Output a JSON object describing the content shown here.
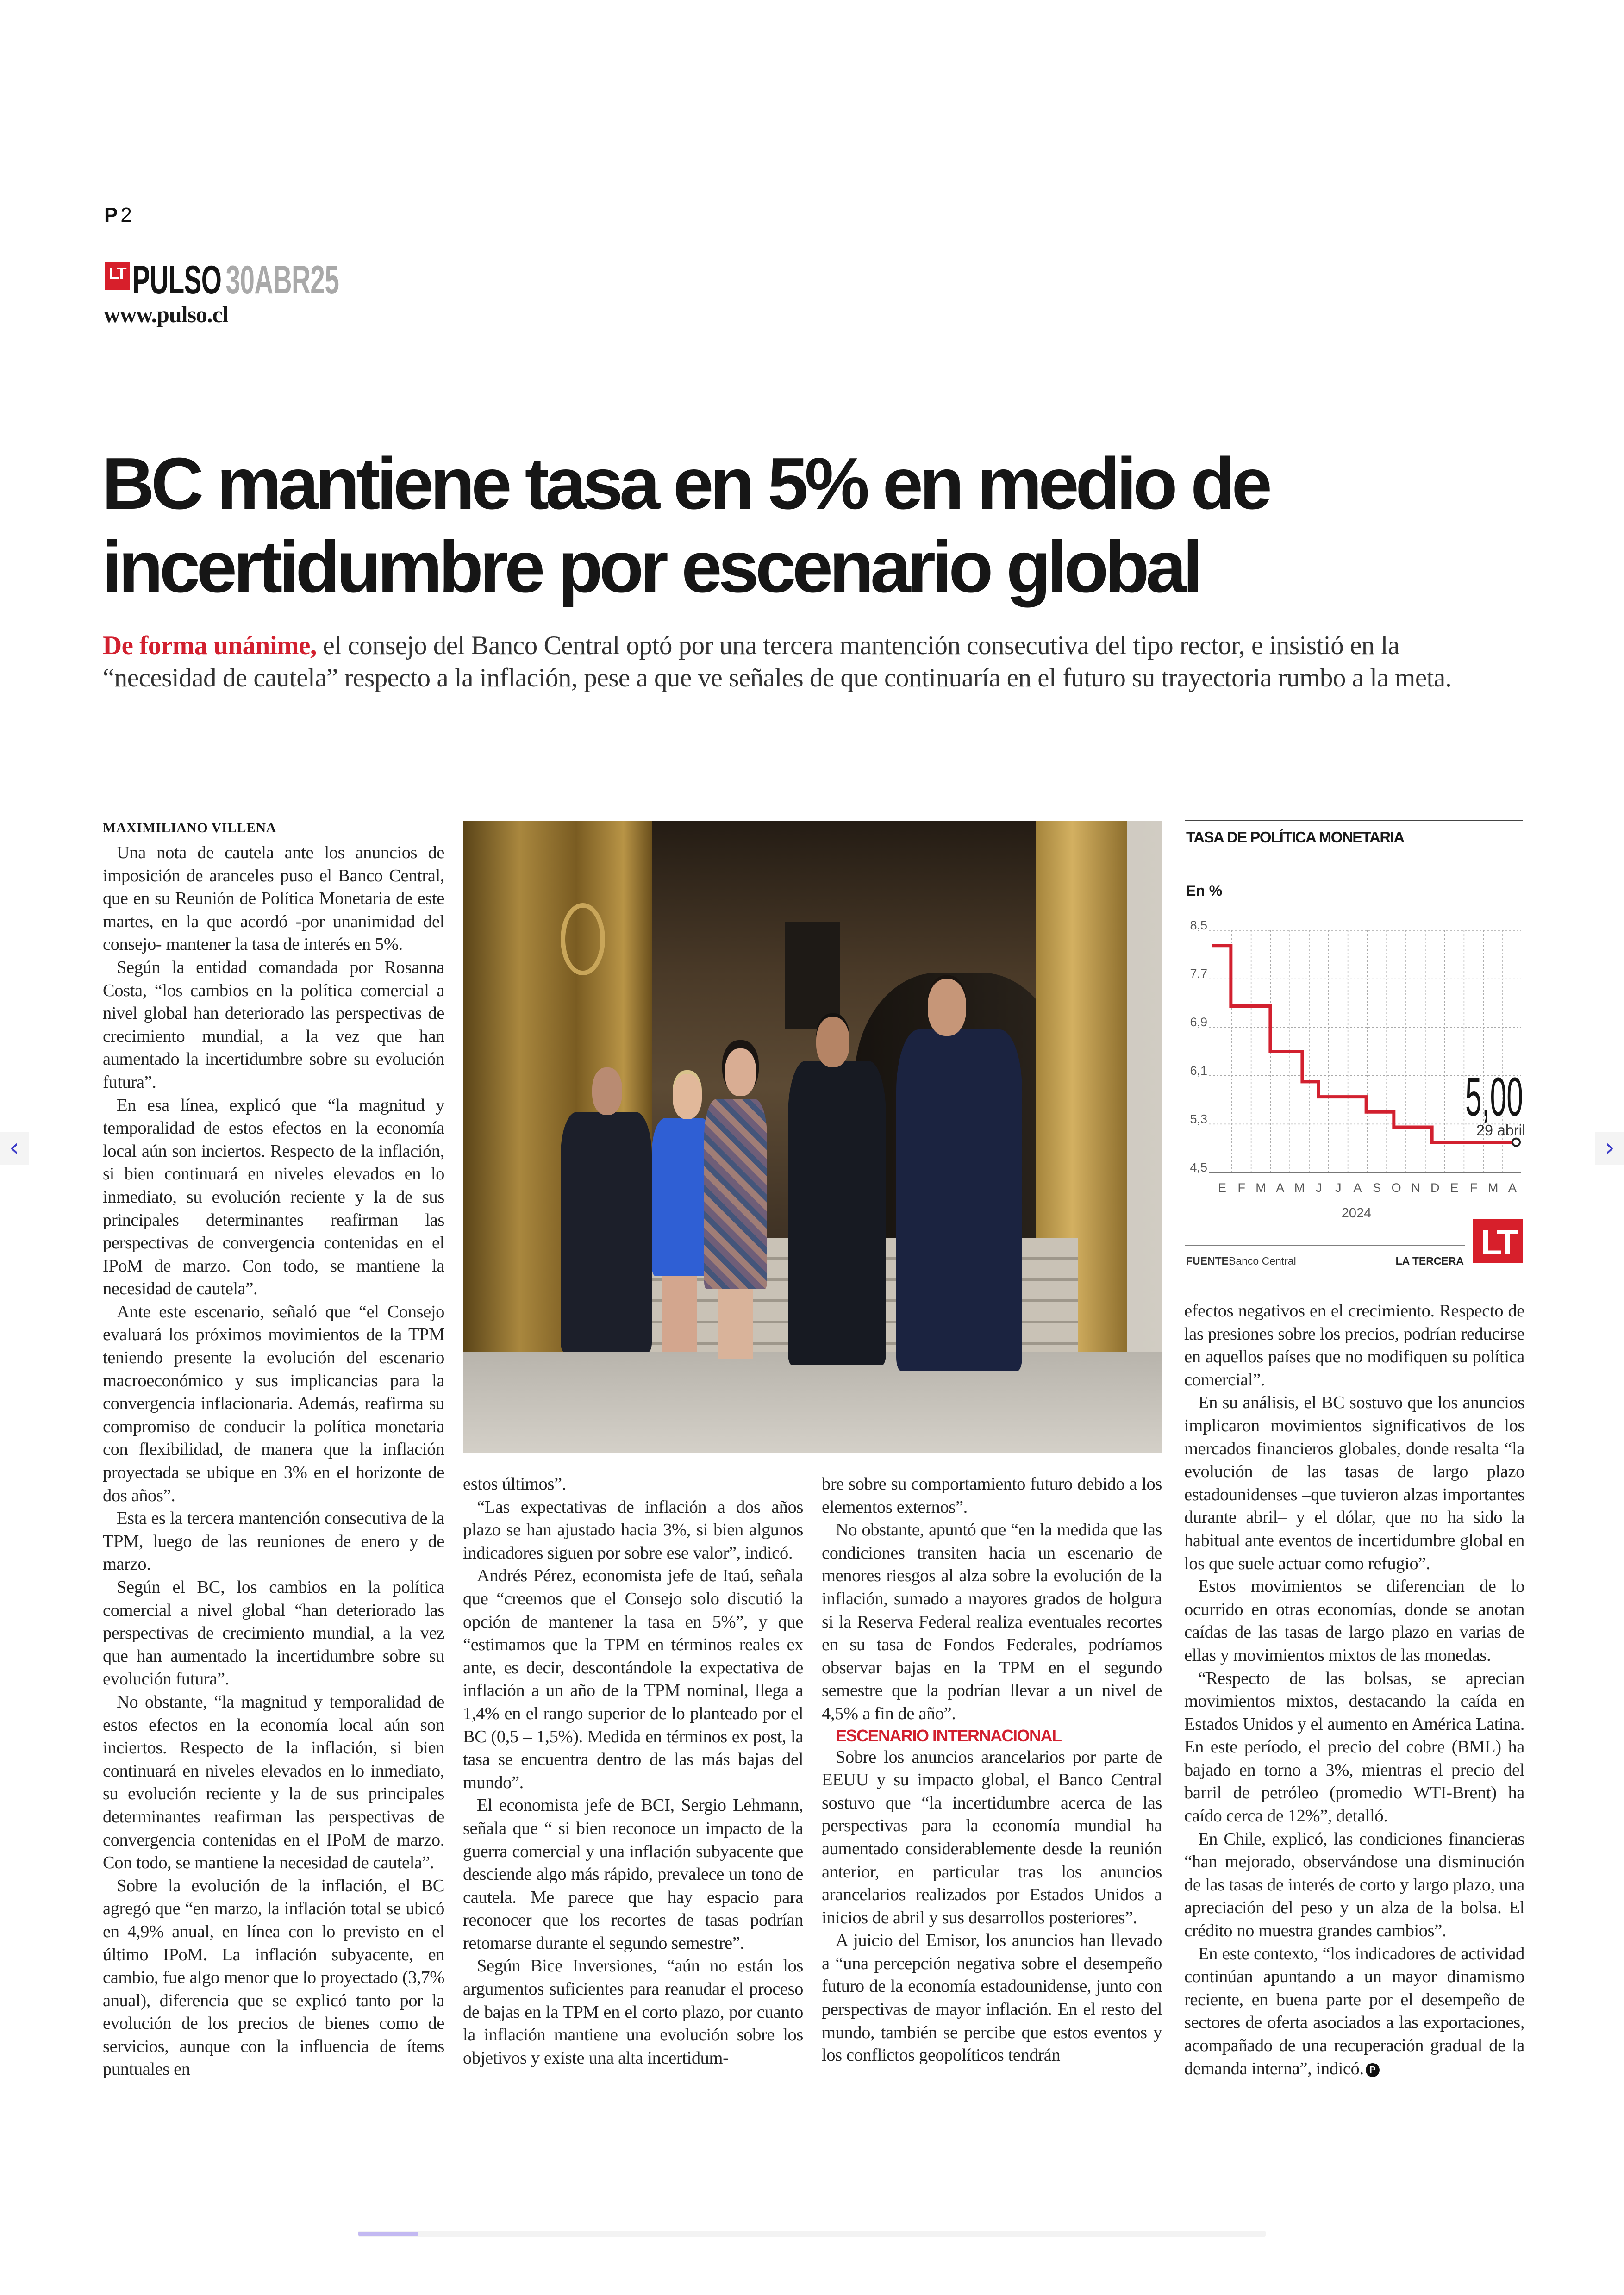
{
  "header": {
    "page_letter": "P",
    "page_number": "2",
    "logo_badge": "LT",
    "logo_badge_small": "LA TERCERA",
    "section": "PULSO",
    "date": "30ABR25",
    "site": "www.pulso.cl"
  },
  "article": {
    "title_lines": [
      "BC mantiene tasa en 5% en medio de",
      "incertidumbre por escenario global"
    ],
    "deck_lead": "De forma unánime,",
    "deck_text": " el consejo del Banco Central optó por una tercera mantención consecutiva del tipo rector, e insistió en la “necesidad de cautela” respecto a la inflación, pese a que ve señales de que continuaría en el futuro su trayectoria rumbo a la meta.",
    "byline": "MAXIMILIANO VILLENA",
    "columns": [
      {
        "paragraphs": [
          "Una nota de cautela ante los anuncios de imposición de aranceles puso el Banco Central, que en su Reunión de Política Monetaria de este martes, en la que acordó -por unanimidad del consejo- mantener la tasa de interés en 5%.",
          "Según la entidad comandada por Rosanna Costa, “los cambios en la política comercial a nivel global han deteriorado las perspectivas de crecimiento mundial, a la vez que han aumentado la incertidumbre sobre su evolución futura”.",
          "En esa línea, explicó que “la magnitud y temporalidad de estos efectos en la economía local aún son inciertos. Respecto de la inflación, si bien continuará en niveles elevados en lo inmediato, su evolución reciente y la de sus principales determinantes reafirman las perspectivas de convergencia contenidas en el IPoM de marzo. Con todo, se mantiene la necesidad de cautela”.",
          "Ante este escenario, señaló que “el Consejo evaluará los próximos movimientos de la TPM teniendo presente la evolución del escenario macroeconómico y sus implicancias para la convergencia inflacionaria. Además, reafirma su compromiso de conducir la política monetaria con flexibilidad, de manera que la inflación proyectada se ubique en 3% en el horizonte de dos años”.",
          "Esta es la tercera mantención consecutiva de la TPM, luego de las reuniones de enero y de marzo.",
          "Según el BC, los cambios en la política comercial a nivel global “han deteriorado las perspectivas de crecimiento mundial, a la vez que han aumentado la incertidumbre sobre su evolución futura”.",
          "No obstante, “la magnitud y temporalidad de estos efectos en la economía local aún son inciertos. Respecto de la inflación, si bien continuará en niveles elevados en lo inmediato, su evolución reciente y la de sus principales determinantes reafirman las perspectivas de convergencia contenidas en el IPoM de marzo. Con todo, se mantiene la necesidad de cautela”.",
          "Sobre la evolución de la inflación, el BC agregó que “en marzo, la inflación total se ubicó en 4,9% anual, en línea con lo previsto en el último IPoM. La inflación subyacente, en cambio, fue algo menor que lo proyectado (3,7% anual), diferencia que se explicó tanto por la evolución de los precios de bienes como de servicios, aunque con la influencia de ítems puntuales en"
        ]
      },
      {
        "paragraphs": [
          "estos últimos”.",
          "“Las expectativas de inflación a dos años plazo se han ajustado hacia 3%, si bien algunos indicadores siguen por sobre ese valor”, indicó.",
          "Andrés Pérez, economista jefe de Itaú, señala que “creemos que el Consejo solo discutió la opción de mantener la tasa en 5%”, y que “estimamos que la TPM en términos reales ex ante, es decir, descontándole la expectativa de inflación a un año de la TPM nominal, llega a 1,4% en el rango superior de lo planteado por el BC (0,5 – 1,5%). Medida en términos ex post, la tasa se encuentra dentro de las más bajas del mundo”.",
          "El economista jefe de BCI, Sergio Lehmann, señala que “ si bien reconoce un impacto de la guerra comercial y una inflación subyacente que desciende algo más rápido, prevalece un tono de cautela. Me parece que hay espacio para reconocer que los recortes de tasas podrían retomarse durante el segundo semestre”.",
          "Según Bice Inversiones, “aún no están los argumentos suficientes para reanudar el proceso de bajas en la TPM en el corto plazo, por cuanto la inflación mantiene una evolución sobre los objetivos y existe una alta incertidum-"
        ]
      },
      {
        "paragraphs": [
          "bre sobre su comportamiento futuro debido a los elementos externos”.",
          "No obstante, apuntó que “en la medida que las condiciones transiten hacia un escenario de menores riesgos al alza sobre la evolución de la inflación, sumado a mayores grados de holgura si la Reserva Federal realiza eventuales recortes en su tasa de Fondos Federales, podríamos observar bajas en la TPM en el segundo semestre que la podrían llevar a un nivel de 4,5% a fin de año”."
        ],
        "subhead": "ESCENARIO INTERNACIONAL",
        "paragraphs_after": [
          "Sobre los anuncios arancelarios por parte de EEUU y su impacto global, el Banco Central sostuvo que “la incertidumbre acerca de las perspectivas para la economía mundial ha aumentado considerablemente desde la reunión anterior, en particular tras los anuncios arancelarios realizados por Estados Unidos a inicios de abril y sus desarrollos posteriores”.",
          "A juicio del Emisor, los anuncios han llevado a “una percepción negativa sobre el desempeño futuro de la economía estadounidense, junto con perspectivas de mayor inflación. En el resto del mundo, también se percibe que estos eventos y los conflictos geopolíticos tendrán"
        ]
      },
      {
        "paragraphs": [
          "efectos negativos en el crecimiento. Respecto de las presiones sobre los precios, podrían reducirse en aquellos países que no modifiquen su política comercial”.",
          "En su análisis, el BC sostuvo que los anuncios implicaron movimientos significativos de los mercados financieros globales, donde resalta “la evolución de las tasas de largo plazo estadounidenses –que tuvieron alzas importantes durante abril– y el dólar, que no ha sido la habitual ante eventos de incertidumbre global en los que suele actuar como refugio”.",
          "Estos movimientos se diferencian de lo ocurrido en otras economías, donde se anotan caídas de las tasas de largo plazo en varias de ellas y movimientos mixtos de las monedas.",
          "“Respecto de las bolsas, se aprecian movimientos mixtos, destacando la caída en Estados Unidos y el aumento en América Latina. En este período, el precio del cobre (BML) ha bajado en torno a 3%, mientras el precio del barril de petróleo (promedio WTI-Brent) ha caído cerca de 12%”, detalló.",
          "En Chile, explicó, las condiciones financieras “han mejorado, observándose una disminución de las tasas de interés de corto y largo plazo, una apreciación del peso y un alza de la bolsa. El crédito no muestra grandes cambios”.",
          "En este contexto, “los indicadores de actividad continúan apuntando a un mayor dinamismo reciente, en buena parte por el desempeño de sectores de oferta asociados a las exportaciones, acompañado de una recuperación gradual de la demanda interna”, indicó."
        ],
        "end_mark": "P"
      }
    ]
  },
  "photo": {
    "description_icon": "photo-bank-council-members"
  },
  "chart_data": {
    "type": "line",
    "step": true,
    "title": "TASA DE POLÍTICA MONETARIA",
    "ylabel": "En %",
    "ylim": [
      4.5,
      8.5
    ],
    "yticks": [
      "8,5",
      "7,7",
      "6,9",
      "6,1",
      "5,3",
      "4,5"
    ],
    "ytick_values": [
      8.5,
      7.7,
      6.9,
      6.1,
      5.3,
      4.5
    ],
    "xlim": [
      "2024-01-01",
      "2025-05-01"
    ],
    "xticks": [
      "E",
      "F",
      "M",
      "A",
      "M",
      "J",
      "J",
      "A",
      "S",
      "O",
      "N",
      "D",
      "E",
      "F",
      "M",
      "A"
    ],
    "xyear_label": "2024",
    "grid": true,
    "series": [
      {
        "color": "#d2202f",
        "points": [
          {
            "date": "2024-01-01",
            "value": 8.25
          },
          {
            "date": "2024-01-31",
            "value": 7.25
          },
          {
            "date": "2024-04-02",
            "value": 6.5
          },
          {
            "date": "2024-05-23",
            "value": 6.0
          },
          {
            "date": "2024-06-18",
            "value": 5.75
          },
          {
            "date": "2024-09-03",
            "value": 5.5
          },
          {
            "date": "2024-10-17",
            "value": 5.25
          },
          {
            "date": "2024-12-17",
            "value": 5.0
          },
          {
            "date": "2025-04-29",
            "value": 5.0
          }
        ]
      }
    ],
    "annotation_value": "5,00",
    "annotation_date": "29 abril",
    "source_label": "FUENTE:",
    "source": "Banco Central",
    "credit": "LA TERCERA",
    "credit_badge": "LT"
  },
  "viewer": {
    "prev_icon": "chevron-left-icon",
    "next_icon": "chevron-right-icon",
    "prev_glyph": "‹",
    "next_glyph": "›",
    "progress": 0.066,
    "progress_color": "#c3b9f2"
  }
}
